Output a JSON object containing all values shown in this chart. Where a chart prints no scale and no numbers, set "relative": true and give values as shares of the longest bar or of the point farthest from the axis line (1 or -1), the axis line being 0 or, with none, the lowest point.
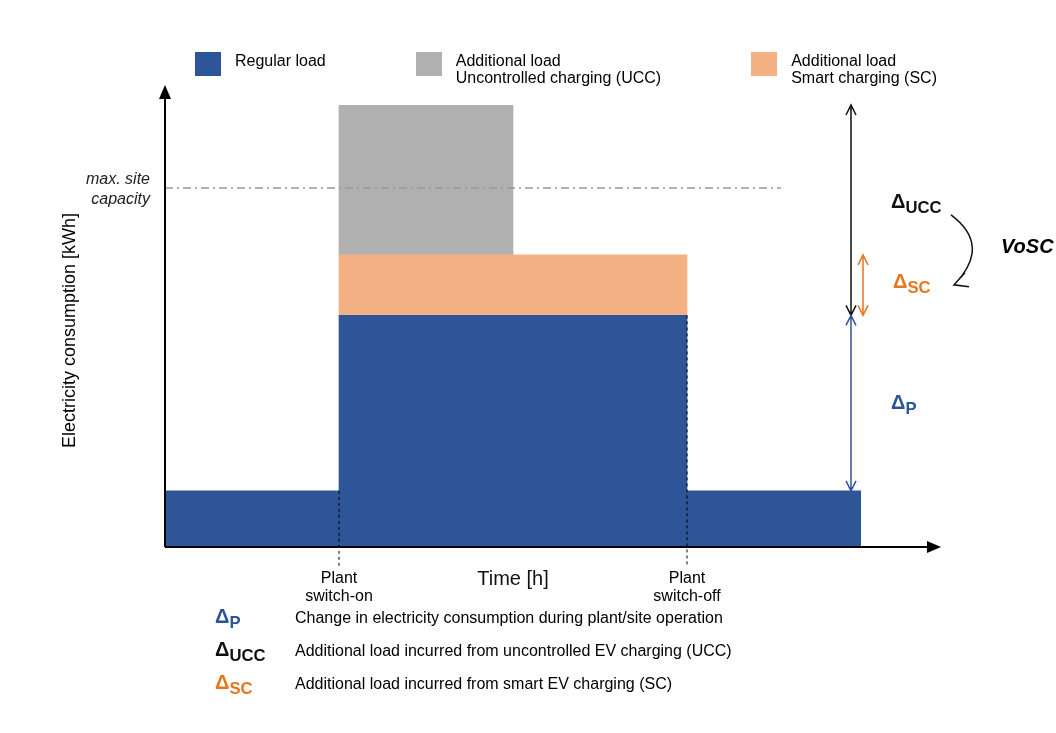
{
  "chart_data": {
    "type": "bar",
    "stacked": true,
    "relative": true,
    "xlabel": "Time [h]",
    "ylabel": "Electricity consumption [kWh]",
    "legend": "top",
    "categories": [
      null,
      null,
      null,
      null
    ],
    "series": [
      {
        "name": "Regular load",
        "color": "#2e5597",
        "values": [
          0.127,
          0.524,
          0.524,
          0.127
        ]
      },
      {
        "name": "Additional load\nSmart charging (SC)",
        "color": "#f4b183",
        "values": [
          null,
          0.137,
          0.137,
          null
        ]
      },
      {
        "name": "Additional load\nUncontrolled charging (UCC)",
        "color": "#b0b0b0",
        "values": [
          null,
          0.339,
          null,
          null
        ]
      }
    ],
    "ref_lines": [
      {
        "axis": "y",
        "value": 0.812,
        "label": "max. site capacity",
        "color": "#999999",
        "line_style": "dashed"
      }
    ],
    "annotations": [
      "Plant switch-on",
      "Plant switch-off",
      "Δ$_{UCC}$",
      "Δ$_{SC}$",
      "Δ$_{P}$",
      "VoSC",
      "Δ$_{P}$ Change in electricity consumption during plant/site operation",
      "Δ$_{UCC}$ Additional load incurred from uncontrolled EV charging (UCC)",
      "Δ$_{SC}$ Additional load incurred from smart EV charging (SC)"
    ]
  }
}
